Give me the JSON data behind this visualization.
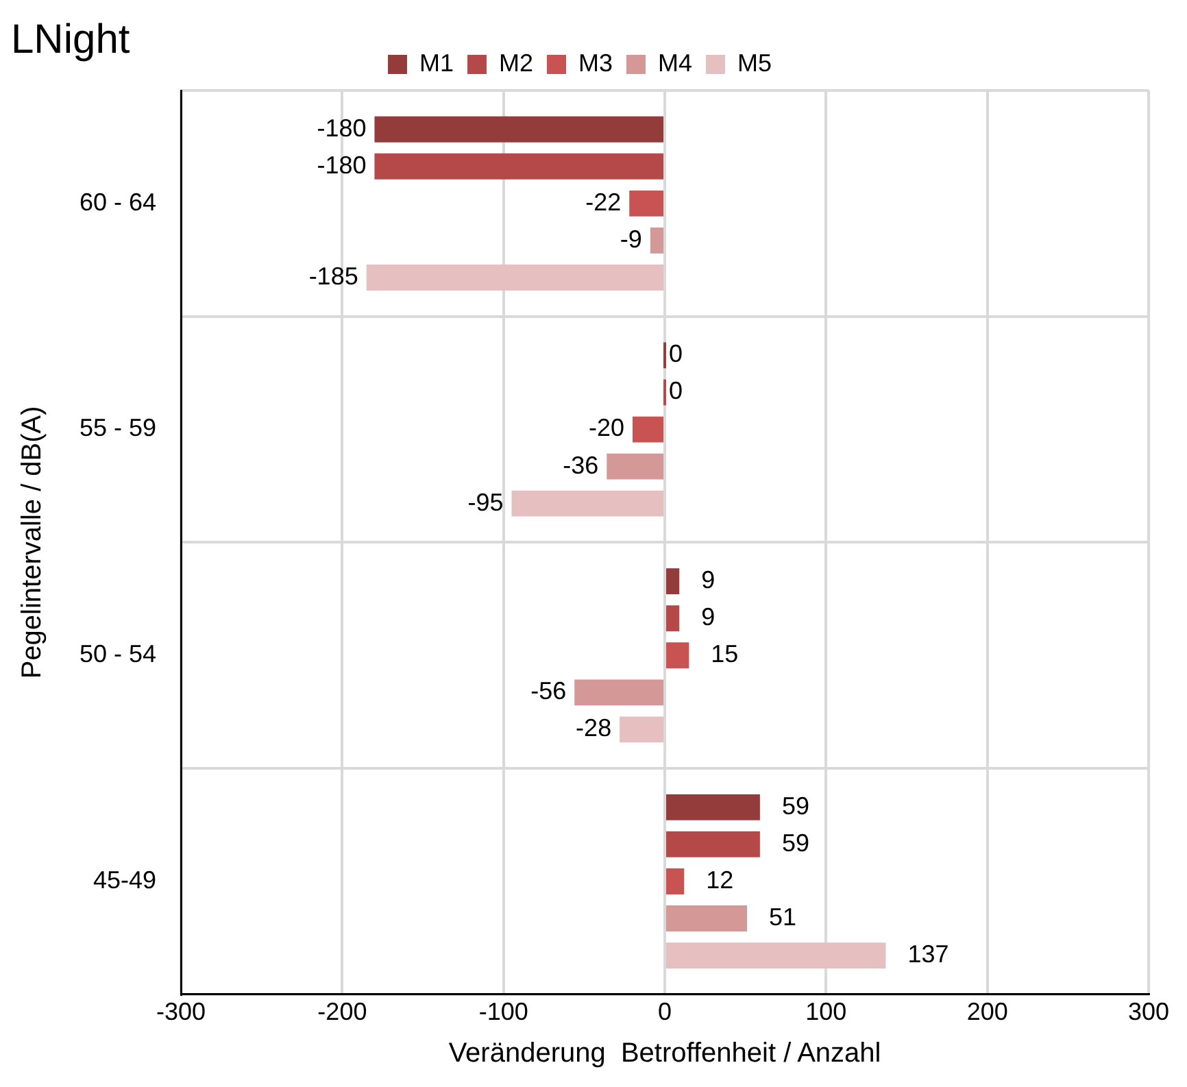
{
  "chart_data": {
    "type": "bar",
    "orientation": "horizontal",
    "title": "LNight",
    "xlabel": "Veränderung  Betroffenheit / Anzahl",
    "ylabel": "Pegelintervalle / dB(A)",
    "categories": [
      "60 - 64",
      "55 - 59",
      "50 - 54",
      "45-49"
    ],
    "series": [
      {
        "name": "M1",
        "color": "#943c3b",
        "values": [
          -180,
          0,
          9,
          59
        ]
      },
      {
        "name": "M2",
        "color": "#b5494a",
        "values": [
          -180,
          0,
          9,
          59
        ]
      },
      {
        "name": "M3",
        "color": "#c85352",
        "values": [
          -22,
          -20,
          15,
          12
        ]
      },
      {
        "name": "M4",
        "color": "#d49896",
        "values": [
          -9,
          -36,
          -56,
          51
        ]
      },
      {
        "name": "M5",
        "color": "#e6bfc0",
        "values": [
          -185,
          -95,
          -28,
          137
        ]
      }
    ],
    "xlim": [
      -300,
      300
    ],
    "xticks": [
      -300,
      -200,
      -100,
      0,
      100,
      200,
      300
    ],
    "grid": true,
    "legend": "top",
    "data_labels": true
  }
}
